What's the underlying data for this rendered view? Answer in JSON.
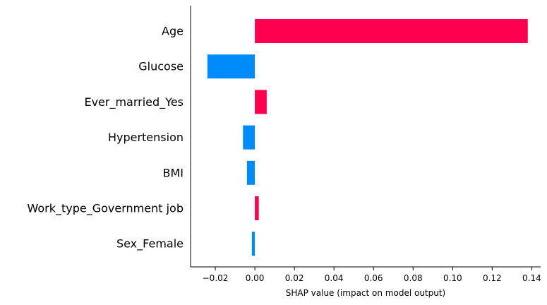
{
  "chart_data": {
    "type": "bar",
    "orientation": "horizontal",
    "title": "",
    "xlabel": "SHAP value (impact on model output)",
    "ylabel": "",
    "categories": [
      "Age",
      "Glucose",
      "Ever_married_Yes",
      "Hypertension",
      "BMI",
      "Work_type_Government job",
      "Sex_Female"
    ],
    "values": [
      0.138,
      -0.024,
      0.006,
      -0.006,
      -0.004,
      0.002,
      -0.0015
    ],
    "xlim": [
      -0.0325,
      0.1445
    ],
    "xticks": [
      -0.02,
      0.0,
      0.02,
      0.04,
      0.06,
      0.08,
      0.1,
      0.12,
      0.14
    ],
    "xtick_labels": [
      "−0.02",
      "0.00",
      "0.02",
      "0.04",
      "0.06",
      "0.08",
      "0.10",
      "0.12",
      "0.14"
    ],
    "grid": false,
    "legend": "none",
    "colors": {
      "positive": "#ff0051",
      "negative": "#008bfb",
      "axis": "#000000"
    }
  }
}
